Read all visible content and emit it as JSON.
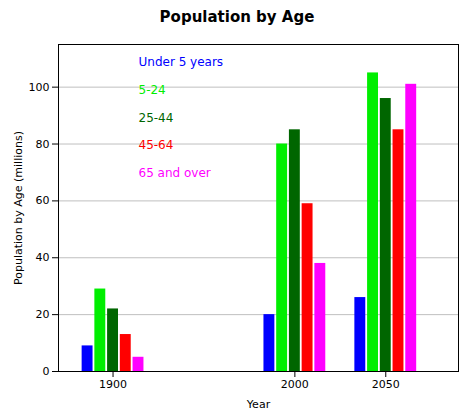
{
  "chart_data": {
    "type": "bar",
    "title": "Population by Age",
    "xlabel": "Year",
    "ylabel": "Population by Age (millions)",
    "x": [
      1900,
      2000,
      2050
    ],
    "series": [
      {
        "name": "Under 5 years",
        "color": "#0000ff",
        "values": [
          9,
          20,
          26
        ]
      },
      {
        "name": "5-24",
        "color": "#00ee00",
        "values": [
          29,
          80,
          105
        ]
      },
      {
        "name": "25-44",
        "color": "#006600",
        "values": [
          22,
          85,
          96
        ]
      },
      {
        "name": "45-64",
        "color": "#ff0000",
        "values": [
          13,
          59,
          85
        ]
      },
      {
        "name": "65 and over",
        "color": "#ff00ff",
        "values": [
          5,
          38,
          101
        ]
      }
    ],
    "xlim": [
      1870,
      2090
    ],
    "xticks": [
      1900,
      2000,
      2050
    ],
    "ylim": [
      0,
      115
    ],
    "yticks": [
      0,
      20,
      40,
      60,
      80,
      100
    ],
    "grid": true,
    "legend": "upper left"
  }
}
